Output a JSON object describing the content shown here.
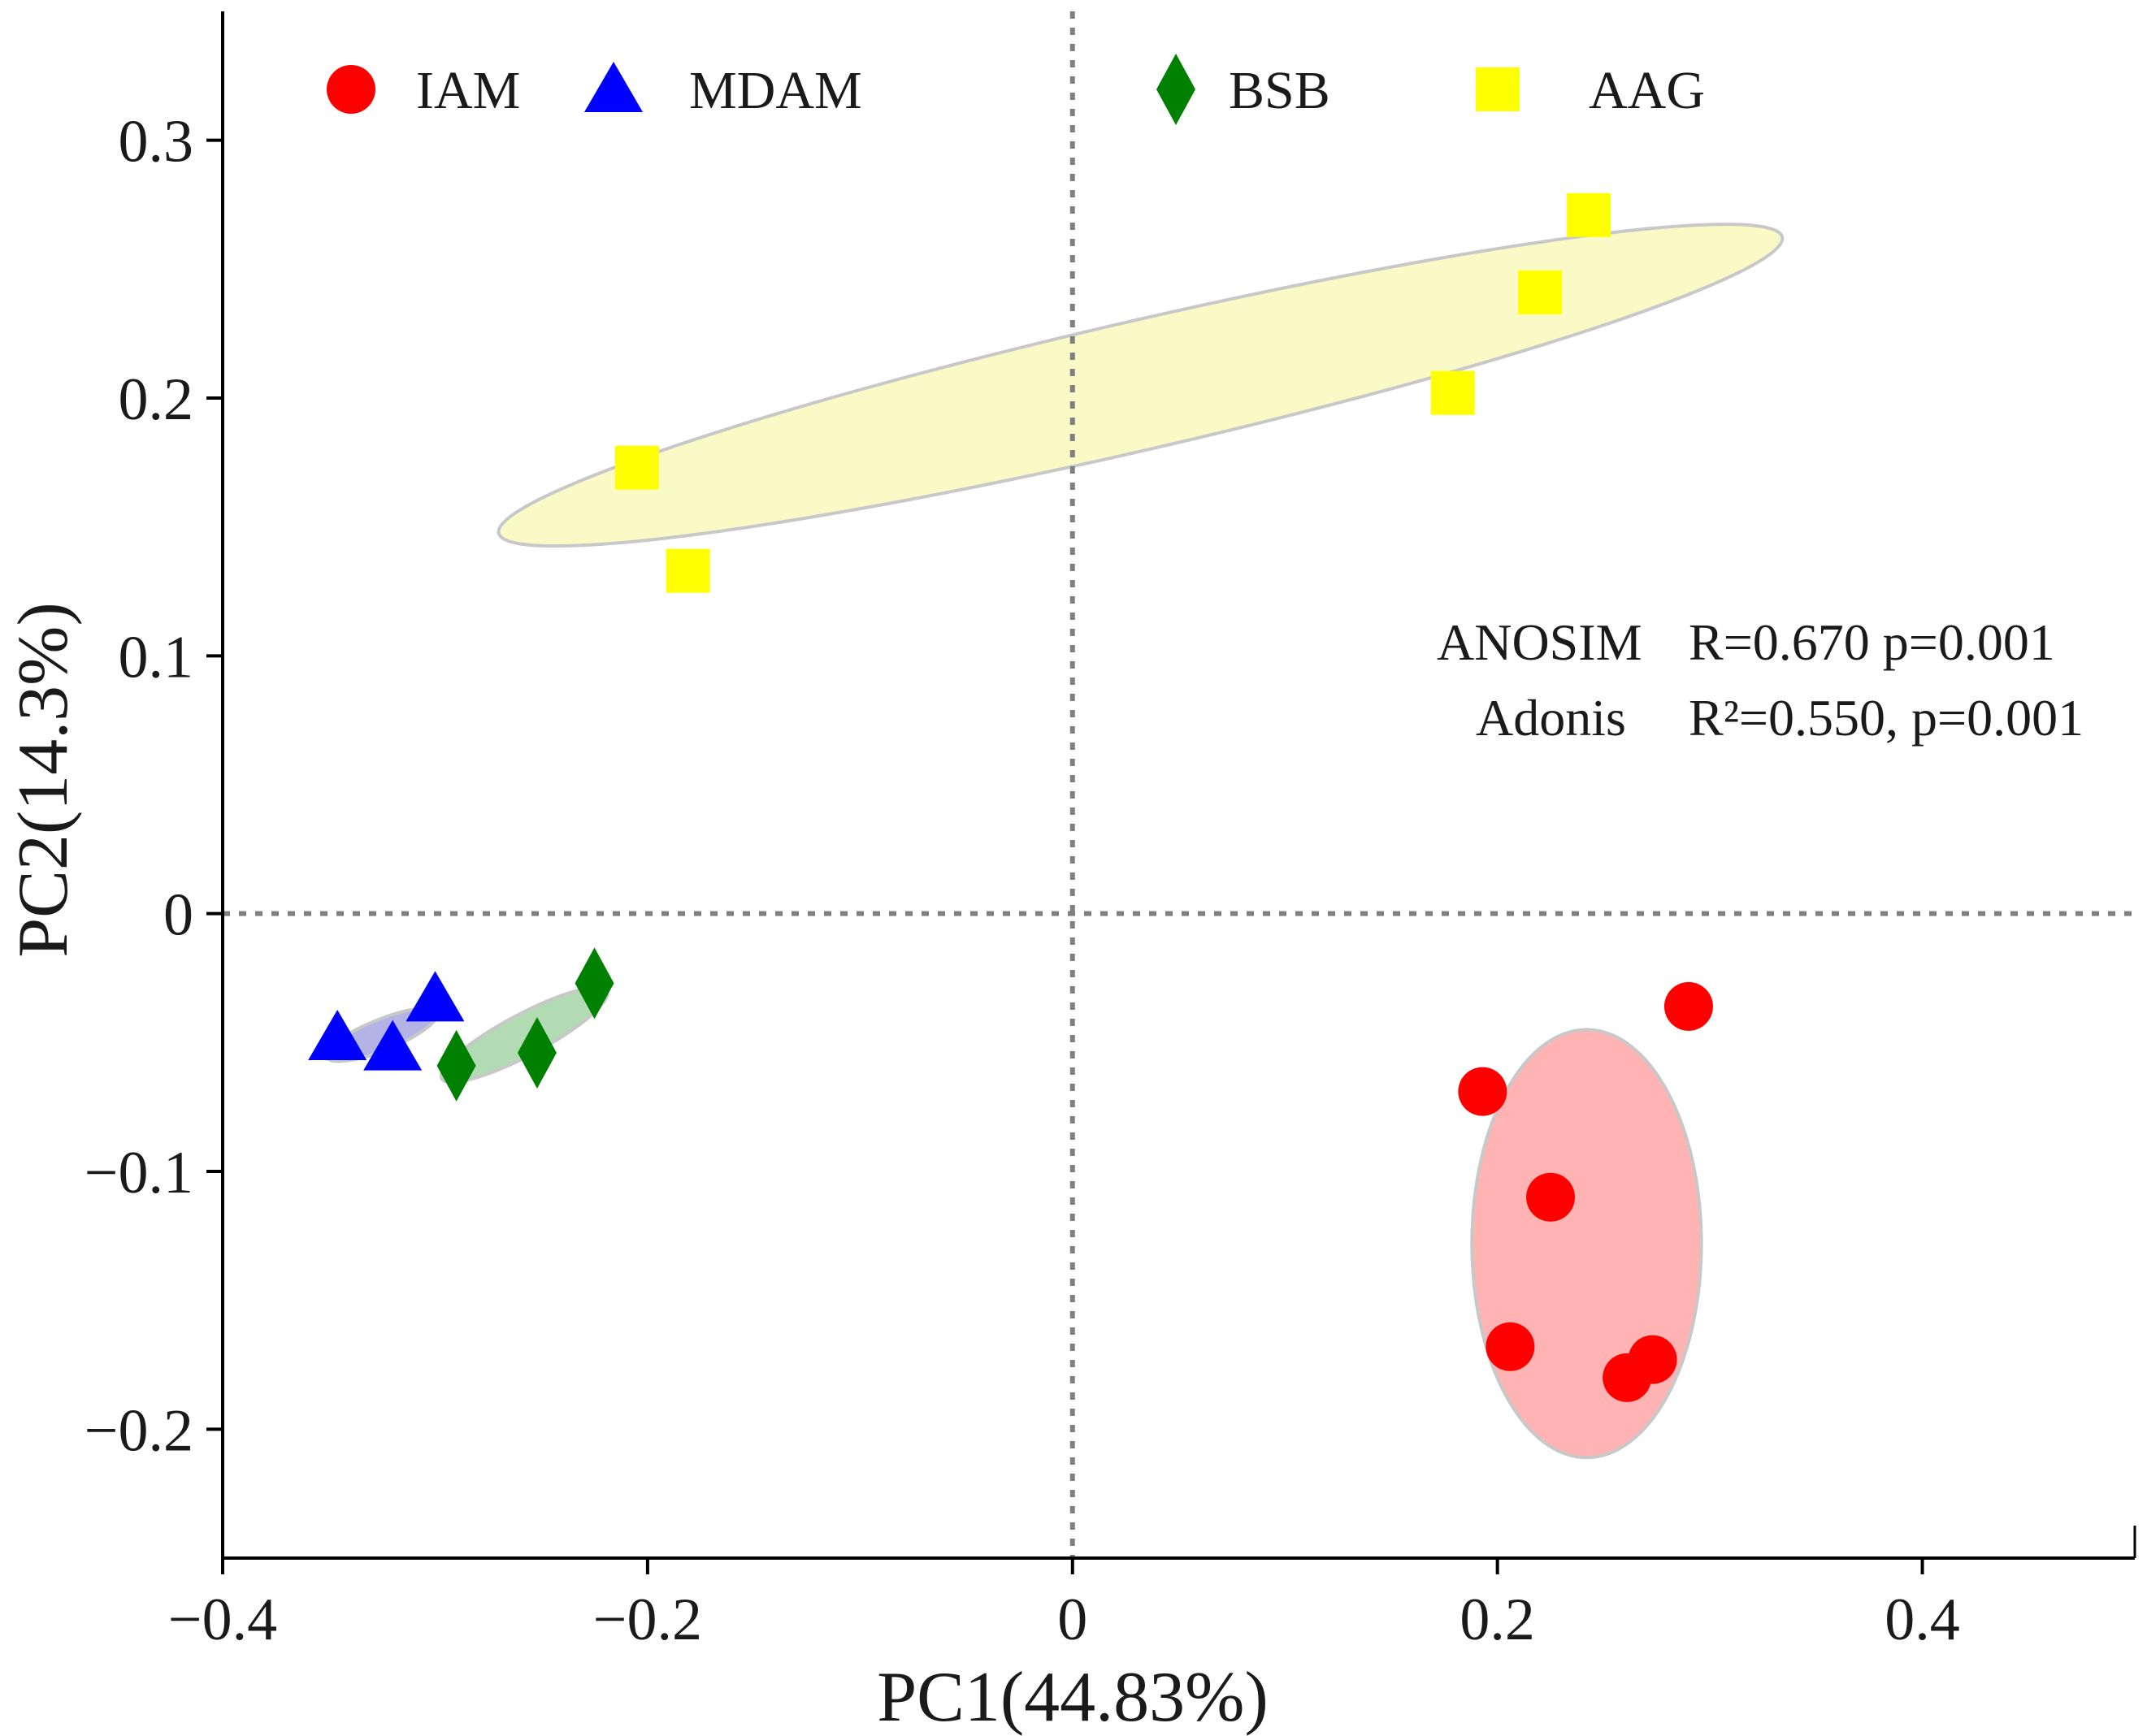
{
  "chart_data": {
    "type": "scatter",
    "title": "",
    "xlabel": "PC1(44.83%)",
    "ylabel": "PC2(14.3%)",
    "xlim": [
      -0.4,
      0.5
    ],
    "ylim": [
      -0.25,
      0.35
    ],
    "xticks": [
      -0.4,
      -0.2,
      0,
      0.2,
      0.4
    ],
    "yticks": [
      -0.2,
      -0.1,
      0,
      0.1,
      0.2,
      0.3
    ],
    "xtick_labels": [
      "−0.4",
      "−0.2",
      "0",
      "0.2",
      "0.4"
    ],
    "ytick_labels": [
      "−0.2",
      "−0.1",
      "0",
      "0.1",
      "0.2",
      "0.3"
    ],
    "grid": false,
    "reference_lines": [
      {
        "axis": "x",
        "value": 0,
        "style": "dotted"
      },
      {
        "axis": "y",
        "value": 0,
        "style": "dotted"
      }
    ],
    "legend_position": "top",
    "series": [
      {
        "name": "IAM",
        "marker": "circle",
        "color": "#ff0000",
        "points": [
          [
            0.29,
            -0.036
          ],
          [
            0.193,
            -0.069
          ],
          [
            0.225,
            -0.11
          ],
          [
            0.206,
            -0.168
          ],
          [
            0.261,
            -0.18
          ],
          [
            0.273,
            -0.173
          ]
        ],
        "ellipse": {
          "cx": 0.242,
          "cy": -0.128,
          "rx": 0.054,
          "ry": 0.083,
          "angle": 0,
          "fill": "#ffb3b3"
        }
      },
      {
        "name": "MDAM",
        "marker": "triangle",
        "color": "#0000ff",
        "points": [
          [
            -0.346,
            -0.048
          ],
          [
            -0.32,
            -0.052
          ],
          [
            -0.3,
            -0.033
          ]
        ],
        "ellipse": {
          "cx": -0.325,
          "cy": -0.047,
          "rx": 0.028,
          "ry": 0.006,
          "angle": -22,
          "fill": "#b3b3e6"
        }
      },
      {
        "name": "BSB",
        "marker": "diamond",
        "color": "#008000",
        "points": [
          [
            -0.29,
            -0.059
          ],
          [
            -0.252,
            -0.054
          ],
          [
            -0.225,
            -0.027
          ]
        ],
        "ellipse": {
          "cx": -0.258,
          "cy": -0.047,
          "rx": 0.044,
          "ry": 0.008,
          "angle": -28,
          "fill": "#b3dbb3"
        }
      },
      {
        "name": "AAG",
        "marker": "square",
        "color": "#ffff00",
        "points": [
          [
            -0.205,
            0.173
          ],
          [
            -0.181,
            0.133
          ],
          [
            0.179,
            0.202
          ],
          [
            0.22,
            0.241
          ],
          [
            0.243,
            0.271
          ]
        ],
        "ellipse": {
          "cx": 0.032,
          "cy": 0.205,
          "rx": 0.31,
          "ry": 0.025,
          "angle": -13,
          "fill": "#fafac6"
        }
      }
    ],
    "annotations": [
      {
        "label": "ANOSIM",
        "value": "R=0.670  p=0.001"
      },
      {
        "label": "Adonis",
        "value": "R²=0.550, p=0.001"
      }
    ]
  }
}
